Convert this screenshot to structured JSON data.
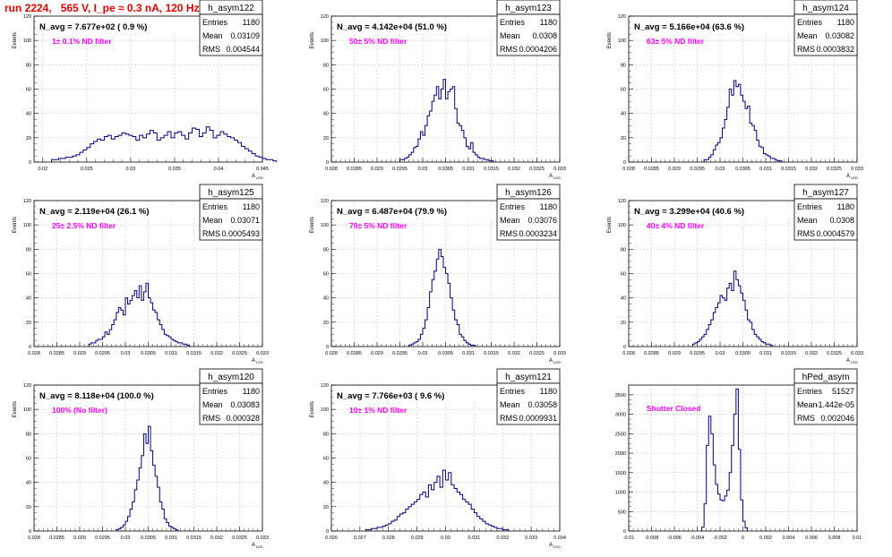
{
  "run_title": "run 2224,   565 V, I_pe ≈ 0.3 nA, 120 Hz",
  "colors": {
    "histogram": "#000080",
    "annotation": "#ff00ff",
    "title": "#e00000",
    "grid": "#c8c8c8"
  },
  "chart_data": [
    {
      "type": "bar",
      "name": "h_asym122",
      "title": "N_avg = 7.677e+02 ( 0.9 %)",
      "annotation": "1± 0.1% ND filter",
      "stats": {
        "entries_label": "Entries",
        "entries": "1180",
        "mean_label": "Mean",
        "mean": "0.03109",
        "rms_label": "RMS",
        "rms": "0.004544"
      },
      "ylabel": "Events",
      "xlabel": "A_LED",
      "xlim": [
        0.019,
        0.045
      ],
      "ylim": [
        0,
        120
      ],
      "xticks": [
        "0.02",
        "0.025",
        "0.03",
        "0.035",
        "0.04",
        "0.045"
      ],
      "yticks": [
        "0",
        "20",
        "40",
        "60",
        "80",
        "100",
        "120"
      ],
      "bins": {
        "start": 0.021,
        "step": 0.0004,
        "values": [
          2,
          2,
          3,
          3,
          4,
          4,
          5,
          6,
          8,
          10,
          12,
          15,
          17,
          19,
          18,
          21,
          22,
          19,
          21,
          22,
          24,
          23,
          22,
          21,
          18,
          22,
          20,
          23,
          26,
          24,
          18,
          20,
          22,
          25,
          20,
          24,
          25,
          22,
          19,
          24,
          28,
          27,
          21,
          24,
          29,
          26,
          20,
          22,
          25,
          23,
          21,
          20,
          18,
          16,
          13,
          11,
          9,
          7,
          5,
          4,
          3,
          2,
          2,
          1
        ]
      }
    },
    {
      "type": "bar",
      "name": "h_asym123",
      "title": "N_avg = 4.142e+04 (51.0 %)",
      "annotation": "50± 5% ND filter",
      "stats": {
        "entries_label": "Entries",
        "entries": "1180",
        "mean_label": "Mean",
        "mean": "0.0308",
        "rms_label": "RMS",
        "rms": "0.0004206"
      },
      "ylabel": "Events",
      "xlabel": "A_LED",
      "xlim": [
        0.028,
        0.033
      ],
      "ylim": [
        0,
        120
      ],
      "xticks": [
        "0.028",
        "0.0285",
        "0.029",
        "0.0295",
        "0.03",
        "0.0305",
        "0.031",
        "0.0315",
        "0.032",
        "0.0325",
        "0.033"
      ],
      "yticks": [
        "0",
        "20",
        "40",
        "60",
        "80",
        "100",
        "120"
      ],
      "bins": {
        "start": 0.0295,
        "step": 5e-05,
        "values": [
          2,
          2,
          3,
          4,
          6,
          8,
          12,
          13,
          19,
          25,
          22,
          30,
          38,
          42,
          50,
          55,
          62,
          52,
          60,
          68,
          52,
          58,
          60,
          62,
          44,
          32,
          30,
          26,
          20,
          13,
          11,
          16,
          8,
          6,
          4,
          3,
          3,
          2,
          2,
          1,
          1
        ]
      }
    },
    {
      "type": "bar",
      "name": "h_asym124",
      "title": "N_avg = 5.166e+04 (63.6 %)",
      "annotation": "63± 5% ND filter",
      "stats": {
        "entries_label": "Entries",
        "entries": "1180",
        "mean_label": "Mean",
        "mean": "0.03082",
        "rms_label": "RMS",
        "rms": "0.0003832"
      },
      "ylabel": "Events",
      "xlabel": "A_LED",
      "xlim": [
        0.028,
        0.033
      ],
      "ylim": [
        0,
        120
      ],
      "xticks": [
        "0.028",
        "0.0285",
        "0.029",
        "0.0295",
        "0.03",
        "0.0305",
        "0.031",
        "0.0315",
        "0.032",
        "0.0325",
        "0.033"
      ],
      "yticks": [
        "0",
        "20",
        "40",
        "60",
        "80",
        "100",
        "120"
      ],
      "bins": {
        "start": 0.02965,
        "step": 5e-05,
        "values": [
          2,
          2,
          4,
          6,
          10,
          14,
          16,
          20,
          28,
          35,
          45,
          60,
          55,
          67,
          62,
          64,
          55,
          50,
          44,
          46,
          32,
          30,
          26,
          18,
          13,
          12,
          7,
          6,
          5,
          3,
          3,
          2,
          1,
          1
        ]
      }
    },
    {
      "type": "bar",
      "name": "h_asym125",
      "title": "N_avg = 2.119e+04 (26.1 %)",
      "annotation": "25± 2.5% ND filter",
      "stats": {
        "entries_label": "Entries",
        "entries": "1180",
        "mean_label": "Mean",
        "mean": "0.03071",
        "rms_label": "RMS",
        "rms": "0.0005493"
      },
      "ylabel": "Events",
      "xlabel": "A_LED",
      "xlim": [
        0.028,
        0.033
      ],
      "ylim": [
        0,
        120
      ],
      "xticks": [
        "0.028",
        "0.0285",
        "0.029",
        "0.0295",
        "0.03",
        "0.0305",
        "0.031",
        "0.0315",
        "0.032",
        "0.0325",
        "0.033"
      ],
      "yticks": [
        "0",
        "20",
        "40",
        "60",
        "80",
        "100",
        "120"
      ],
      "bins": {
        "start": 0.0292,
        "step": 5e-05,
        "values": [
          2,
          3,
          3,
          5,
          6,
          6,
          8,
          12,
          10,
          14,
          18,
          22,
          28,
          32,
          30,
          26,
          40,
          35,
          38,
          42,
          46,
          40,
          50,
          38,
          45,
          52,
          40,
          36,
          30,
          28,
          22,
          18,
          14,
          10,
          9,
          8,
          6,
          5,
          4,
          3,
          3,
          2,
          2,
          1
        ]
      }
    },
    {
      "type": "bar",
      "name": "h_asym126",
      "title": "N_avg = 6.487e+04 (79.9 %)",
      "annotation": "79± 5% ND filter",
      "stats": {
        "entries_label": "Entries",
        "entries": "1180",
        "mean_label": "Mean",
        "mean": "0.03076",
        "rms_label": "RMS",
        "rms": "0.0003234"
      },
      "ylabel": "Events",
      "xlabel": "A_LED",
      "xlim": [
        0.028,
        0.033
      ],
      "ylim": [
        0,
        120
      ],
      "xticks": [
        "0.028",
        "0.0285",
        "0.029",
        "0.0295",
        "0.03",
        "0.0305",
        "0.031",
        "0.0315",
        "0.032",
        "0.0325",
        "0.033"
      ],
      "yticks": [
        "0",
        "20",
        "40",
        "60",
        "80",
        "100",
        "120"
      ],
      "bins": {
        "start": 0.0297,
        "step": 5e-05,
        "values": [
          1,
          2,
          3,
          4,
          6,
          10,
          15,
          22,
          32,
          45,
          55,
          62,
          72,
          80,
          74,
          65,
          60,
          52,
          40,
          30,
          22,
          18,
          10,
          8,
          5,
          3,
          2,
          1,
          1
        ]
      }
    },
    {
      "type": "bar",
      "name": "h_asym127",
      "title": "N_avg = 3.299e+04 (40.6 %)",
      "annotation": "40± 4% ND filter",
      "stats": {
        "entries_label": "Entries",
        "entries": "1180",
        "mean_label": "Mean",
        "mean": "0.0308",
        "rms_label": "RMS",
        "rms": "0.0004579"
      },
      "ylabel": "Events",
      "xlabel": "A_LED",
      "xlim": [
        0.028,
        0.033
      ],
      "ylim": [
        0,
        120
      ],
      "xticks": [
        "0.028",
        "0.0285",
        "0.029",
        "0.0295",
        "0.03",
        "0.0305",
        "0.031",
        "0.0315",
        "0.032",
        "0.0325",
        "0.033"
      ],
      "yticks": [
        "0",
        "20",
        "40",
        "60",
        "80",
        "100",
        "120"
      ],
      "bins": {
        "start": 0.0294,
        "step": 5e-05,
        "values": [
          2,
          3,
          4,
          6,
          8,
          10,
          14,
          18,
          22,
          28,
          32,
          36,
          42,
          40,
          38,
          48,
          52,
          46,
          62,
          55,
          50,
          44,
          38,
          30,
          22,
          20,
          14,
          10,
          8,
          6,
          4,
          3,
          2,
          2,
          1
        ]
      }
    },
    {
      "type": "bar",
      "name": "h_asym120",
      "title": "N_avg = 8.118e+04 (100.0 %)",
      "annotation": "100% (No filter)",
      "stats": {
        "entries_label": "Entries",
        "entries": "1180",
        "mean_label": "Mean",
        "mean": "0.03083",
        "rms_label": "RMS",
        "rms": "0.000328"
      },
      "ylabel": "Events",
      "xlabel": "A_LED",
      "xlim": [
        0.028,
        0.033
      ],
      "ylim": [
        0,
        120
      ],
      "xticks": [
        "0.028",
        "0.0285",
        "0.029",
        "0.0295",
        "0.03",
        "0.0305",
        "0.031",
        "0.0315",
        "0.032",
        "0.0325",
        "0.033"
      ],
      "yticks": [
        "0",
        "20",
        "40",
        "60",
        "80",
        "100",
        "120"
      ],
      "bins": {
        "start": 0.0298,
        "step": 5e-05,
        "values": [
          1,
          2,
          3,
          5,
          8,
          12,
          18,
          24,
          34,
          42,
          52,
          62,
          80,
          72,
          86,
          66,
          54,
          45,
          36,
          24,
          18,
          10,
          7,
          4,
          3,
          2,
          1
        ]
      }
    },
    {
      "type": "bar",
      "name": "h_asym121",
      "title": "N_avg = 7.766e+03 ( 9.6 %)",
      "annotation": "10± 1% ND filter",
      "stats": {
        "entries_label": "Entries",
        "entries": "1180",
        "mean_label": "Mean",
        "mean": "0.03058",
        "rms_label": "RMS",
        "rms": "0.0009931"
      },
      "ylabel": "Events",
      "xlabel": "A_LED",
      "xlim": [
        0.026,
        0.034
      ],
      "ylim": [
        0,
        120
      ],
      "xticks": [
        "0.026",
        "0.027",
        "0.028",
        "0.029",
        "0.03",
        "0.031",
        "0.032",
        "0.033",
        "0.034"
      ],
      "yticks": [
        "0",
        "20",
        "40",
        "60",
        "80",
        "100",
        "120"
      ],
      "bins": {
        "start": 0.0272,
        "step": 0.0001,
        "values": [
          1,
          1,
          2,
          2,
          3,
          3,
          4,
          5,
          6,
          8,
          9,
          12,
          14,
          15,
          18,
          20,
          22,
          24,
          26,
          30,
          32,
          28,
          38,
          34,
          40,
          45,
          36,
          50,
          42,
          48,
          38,
          35,
          32,
          30,
          26,
          24,
          22,
          18,
          15,
          12,
          10,
          8,
          6,
          5,
          4,
          3,
          2,
          2,
          1,
          1
        ]
      }
    },
    {
      "type": "bar",
      "name": "hPed_asym",
      "title": "",
      "annotation": "Shutter Closed",
      "stats": {
        "entries_label": "Entries",
        "entries": "51527",
        "mean_label": "Mean",
        "mean": "-1.442e-05",
        "rms_label": "RMS",
        "rms": "0.002046"
      },
      "ylabel": "",
      "xlabel": "",
      "xlim": [
        -0.01,
        0.01
      ],
      "ylim": [
        0,
        3750
      ],
      "xticks": [
        "-0.01",
        "-0.008",
        "-0.006",
        "-0.004",
        "-0.002",
        "0",
        "0.002",
        "0.004",
        "0.006",
        "0.008",
        "0.01"
      ],
      "yticks": [
        "0",
        "500",
        "1000",
        "1500",
        "2000",
        "2500",
        "3000",
        "3500"
      ],
      "bins": {
        "start": -0.0036,
        "step": 0.0002,
        "values": [
          100,
          700,
          2200,
          2950,
          2500,
          1700,
          1200,
          950,
          800,
          780,
          900,
          1050,
          1500,
          2200,
          3000,
          3650,
          2100,
          800,
          250,
          80
        ]
      }
    }
  ]
}
